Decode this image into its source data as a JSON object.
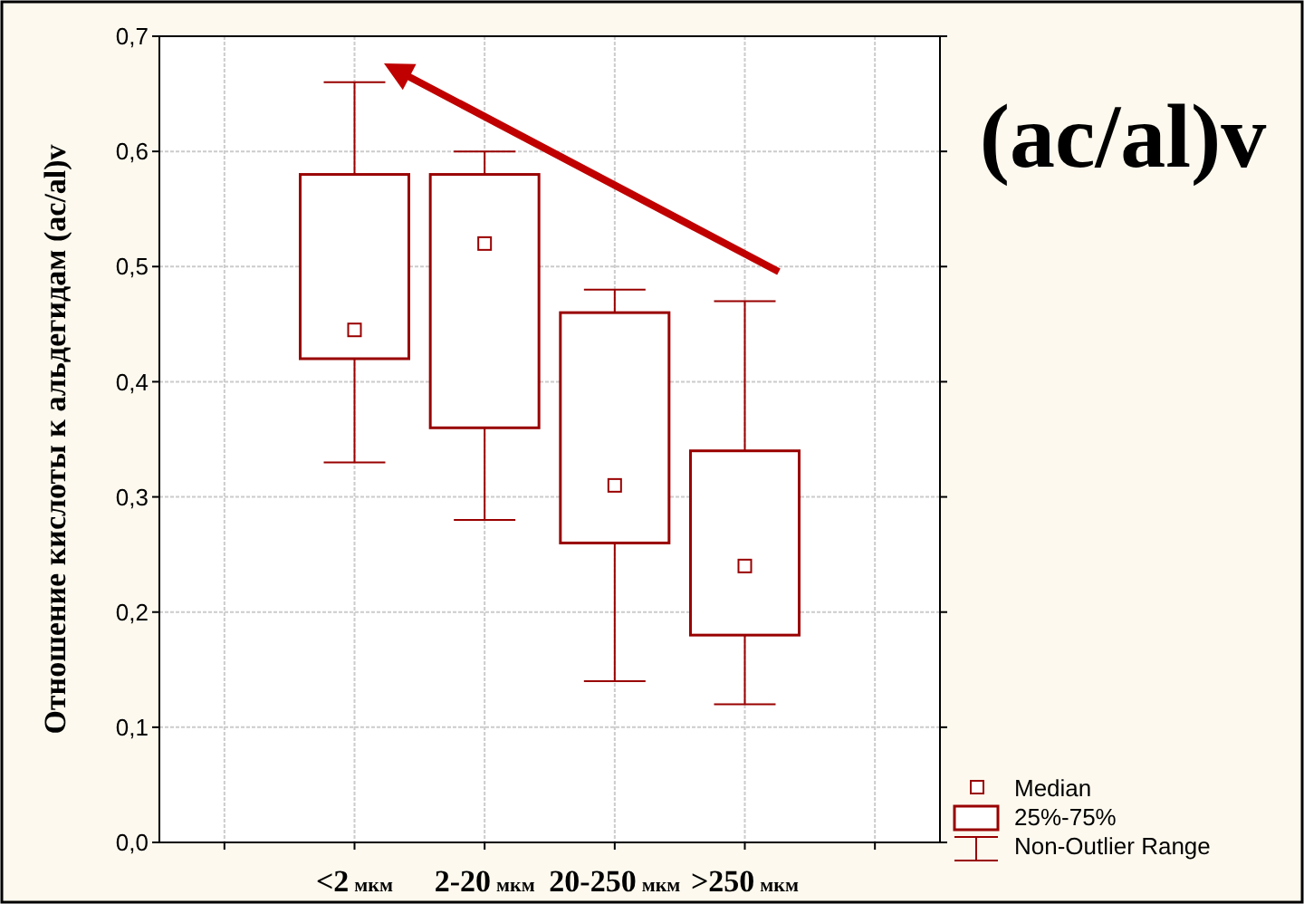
{
  "chart_data": {
    "type": "box",
    "title": "(ac/al)v",
    "ylabel": "Отношение кислоты к альдегидам (ac/al)v",
    "categories": [
      "<2 мкм",
      "2-20 мкм",
      "20-250 мкм",
      ">250 мкм"
    ],
    "color": "#990000",
    "boxes": [
      {
        "low": 0.33,
        "q1": 0.42,
        "median": 0.445,
        "q3": 0.58,
        "high": 0.66
      },
      {
        "low": 0.28,
        "q1": 0.36,
        "median": 0.52,
        "q3": 0.58,
        "high": 0.6
      },
      {
        "low": 0.14,
        "q1": 0.26,
        "median": 0.31,
        "q3": 0.46,
        "high": 0.48
      },
      {
        "low": 0.12,
        "q1": 0.18,
        "median": 0.24,
        "q3": 0.34,
        "high": 0.47
      }
    ],
    "ylim": [
      0,
      0.7
    ],
    "yticks": [
      {
        "value": 0,
        "label": "0,0"
      },
      {
        "value": 0.1,
        "label": "0,1"
      },
      {
        "value": 0.2,
        "label": "0,2"
      },
      {
        "value": 0.3,
        "label": "0,3"
      },
      {
        "value": 0.4,
        "label": "0,4"
      },
      {
        "value": 0.5,
        "label": "0,5"
      },
      {
        "value": 0.6,
        "label": "0,6"
      },
      {
        "value": 0.7,
        "label": "0,7"
      }
    ],
    "grid": true,
    "annotations": [
      "Median",
      "25%-75%",
      "Non-Outlier Range"
    ]
  }
}
